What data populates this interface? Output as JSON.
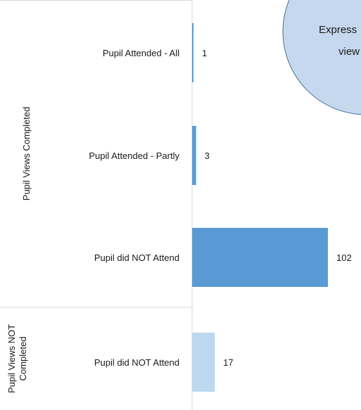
{
  "chart_data": {
    "type": "bar",
    "orientation": "horizontal",
    "categories": [
      {
        "group": "Pupil Views Completed",
        "label": "Pupil Attended - All",
        "value": 1,
        "color": "#5b9bd5"
      },
      {
        "group": "Pupil Views Completed",
        "label": "Pupil Attended - Partly",
        "value": 3,
        "color": "#5b9bd5"
      },
      {
        "group": "Pupil Views Completed",
        "label": "Pupil did NOT Attend",
        "value": 102,
        "color": "#5b9bd5"
      },
      {
        "group": "Pupil Views NOT Completed",
        "label": "Pupil did NOT Attend",
        "value": 17,
        "color": "#bdd7ee"
      }
    ],
    "groups": [
      {
        "lines": [
          "Pupil Views Completed"
        ]
      },
      {
        "lines": [
          "Pupil Views NOT",
          "Completed"
        ]
      }
    ],
    "xlim": [
      0,
      102
    ],
    "grid": false,
    "legend": "none"
  },
  "callout": {
    "lines": [
      "Express",
      "view"
    ]
  },
  "colors": {
    "completed_bar": "#5b9bd5",
    "not_completed_bar": "#bdd7ee",
    "callout_fill": "#c5d8ee",
    "callout_border": "#41719c",
    "axis_line": "#d9d9d9"
  }
}
